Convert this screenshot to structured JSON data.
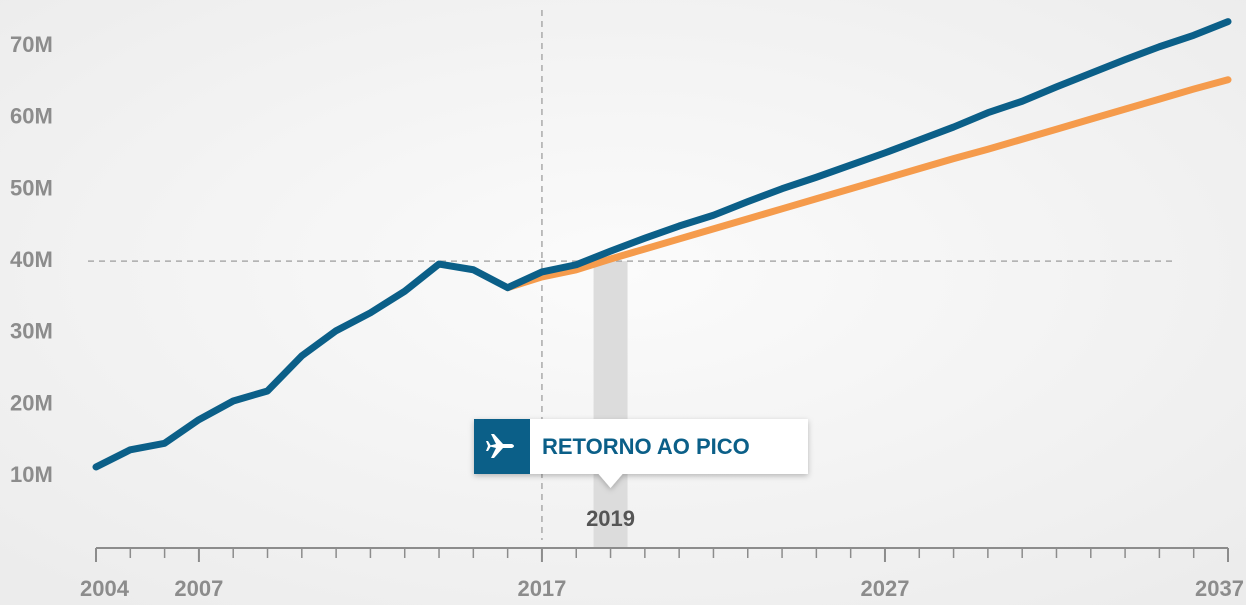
{
  "chart_data": {
    "type": "line",
    "x": [
      2004,
      2005,
      2006,
      2007,
      2008,
      2009,
      2010,
      2011,
      2012,
      2013,
      2014,
      2015,
      2016,
      2017,
      2018,
      2019,
      2020,
      2021,
      2022,
      2023,
      2024,
      2025,
      2026,
      2027,
      2028,
      2029,
      2030,
      2031,
      2032,
      2033,
      2034,
      2035,
      2036,
      2037
    ],
    "series": [
      {
        "color": "#0b5f88",
        "values": [
          11.3,
          13.7,
          14.6,
          17.9,
          20.5,
          21.9,
          26.8,
          30.3,
          32.8,
          35.8,
          39.6,
          38.8,
          36.3,
          38.5,
          39.5,
          41.4,
          43.2,
          44.9,
          46.4,
          48.3,
          50.1,
          51.7,
          53.4,
          55.1,
          56.9,
          58.7,
          60.7,
          62.3,
          64.3,
          66.2,
          68.1,
          69.9,
          71.5,
          73.4
        ]
      },
      {
        "color": "#f59b4c",
        "values": [
          null,
          null,
          null,
          null,
          null,
          null,
          null,
          null,
          null,
          null,
          null,
          null,
          36.3,
          37.8,
          38.8,
          40.3,
          41.7,
          43.1,
          44.5,
          45.9,
          47.3,
          48.7,
          50.1,
          51.5,
          52.9,
          54.3,
          55.6,
          57.0,
          58.4,
          59.8,
          61.2,
          62.6,
          64.0,
          65.3
        ]
      }
    ],
    "xlim": [
      2004,
      2037
    ],
    "xticks": [
      2004,
      2007,
      2017,
      2027,
      2037
    ],
    "ylim": [
      0,
      76
    ],
    "yticks": [
      {
        "value": 10,
        "label": "10M"
      },
      {
        "value": 20,
        "label": "20M"
      },
      {
        "value": 30,
        "label": "30M"
      },
      {
        "value": 40,
        "label": "40M"
      },
      {
        "value": 50,
        "label": "50M"
      },
      {
        "value": 60,
        "label": "60M"
      },
      {
        "value": 70,
        "label": "70M"
      }
    ],
    "reference_x": 2017,
    "reference_y": 40,
    "annotation": {
      "label": "RETORNO AO PICO",
      "year": 2019
    }
  }
}
